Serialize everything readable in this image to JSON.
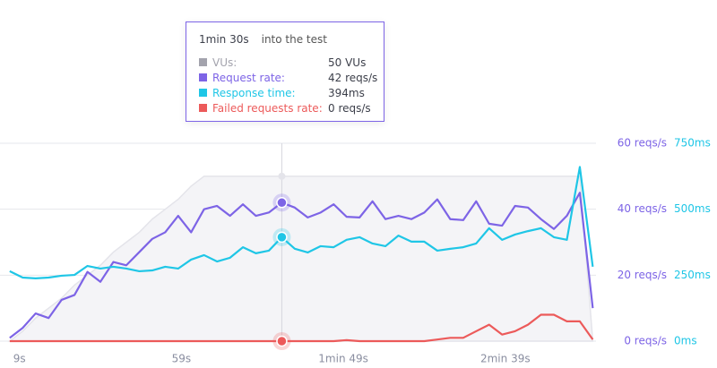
{
  "chart_data": {
    "type": "line",
    "x": [
      6,
      10,
      14,
      18,
      22,
      26,
      30,
      34,
      38,
      42,
      46,
      50,
      54,
      58,
      62,
      66,
      70,
      74,
      78,
      82,
      86,
      90,
      94,
      98,
      102,
      106,
      110,
      114,
      118,
      122,
      126,
      130,
      134,
      138,
      142,
      146,
      150,
      154,
      158,
      162,
      166,
      170,
      174,
      178,
      182,
      186
    ],
    "xlim": [
      3,
      187
    ],
    "xticks": [
      {
        "value": 9,
        "label": "9s"
      },
      {
        "value": 59,
        "label": "59s"
      },
      {
        "value": 109,
        "label": "1min 49s"
      },
      {
        "value": 159,
        "label": "2min 39s"
      }
    ],
    "ylim": [
      0,
      60
    ],
    "yticks": [
      {
        "value": 0,
        "label": "0 reqs/s"
      },
      {
        "value": 20,
        "label": "20 reqs/s"
      },
      {
        "value": 40,
        "label": "40 reqs/s"
      },
      {
        "value": 60,
        "label": "60 reqs/s"
      }
    ],
    "y2lim": [
      0,
      750
    ],
    "y2ticks": [
      {
        "value": 0,
        "label": "0ms"
      },
      {
        "value": 250,
        "label": "250ms"
      },
      {
        "value": 500,
        "label": "500ms"
      },
      {
        "value": 750,
        "label": "750ms"
      }
    ],
    "grid": true,
    "hover_x": 90,
    "series": [
      {
        "name": "VUs",
        "color": "#a3a3ad",
        "area": true,
        "values": [
          0,
          3,
          7,
          10,
          13,
          17,
          20,
          23,
          27,
          30,
          33,
          37,
          40,
          43,
          47,
          50,
          50,
          50,
          50,
          50,
          50,
          50,
          50,
          50,
          50,
          50,
          50,
          50,
          50,
          50,
          50,
          50,
          50,
          50,
          50,
          50,
          50,
          50,
          50,
          50,
          50,
          50,
          50,
          50,
          50,
          0
        ]
      },
      {
        "name": "Request rate",
        "color": "#7d64e6",
        "values": [
          1,
          4,
          8.4,
          7,
          12.5,
          14,
          21,
          18,
          24,
          23,
          27,
          31,
          33,
          38,
          33,
          40,
          41,
          38,
          41.5,
          38,
          39,
          42,
          40.5,
          37.5,
          39,
          41.5,
          37.7,
          37.5,
          42.4,
          37,
          38,
          37,
          39,
          43,
          37,
          36.7,
          42.4,
          35.6,
          35,
          41,
          40.5,
          37,
          34,
          38,
          45,
          10
        ]
      },
      {
        "name": "Response time",
        "color": "#1fc6e6",
        "axis": "y2",
        "values": [
          265,
          241,
          238,
          241,
          248,
          251,
          285,
          275,
          282,
          275,
          265,
          268,
          282,
          275,
          309,
          326,
          302,
          316,
          356,
          333,
          343,
          394,
          350,
          336,
          360,
          356,
          384,
          394,
          370,
          360,
          400,
          377,
          377,
          343,
          350,
          356,
          370,
          428,
          384,
          404,
          417,
          428,
          394,
          384,
          660,
          282
        ]
      },
      {
        "name": "Failed requests rate",
        "color": "#ec5a5a",
        "values": [
          0,
          0,
          0,
          0,
          0,
          0,
          0,
          0,
          0,
          0,
          0,
          0,
          0,
          0,
          0,
          0,
          0,
          0,
          0,
          0,
          0,
          0,
          0,
          0,
          0,
          0,
          0.3,
          0,
          0,
          0,
          0,
          0,
          0,
          0.5,
          1,
          1,
          3,
          5,
          2,
          3,
          5,
          8,
          8,
          6,
          6,
          0.5
        ]
      }
    ]
  },
  "tooltip": {
    "time": "1min 30s",
    "suffix": "into the test",
    "rows": [
      {
        "label": "VUs:",
        "value": "50 VUs"
      },
      {
        "label": "Request rate:",
        "value": "42 reqs/s"
      },
      {
        "label": "Response time:",
        "value": "394ms"
      },
      {
        "label": "Failed requests rate:",
        "value": "0 reqs/s"
      }
    ]
  }
}
